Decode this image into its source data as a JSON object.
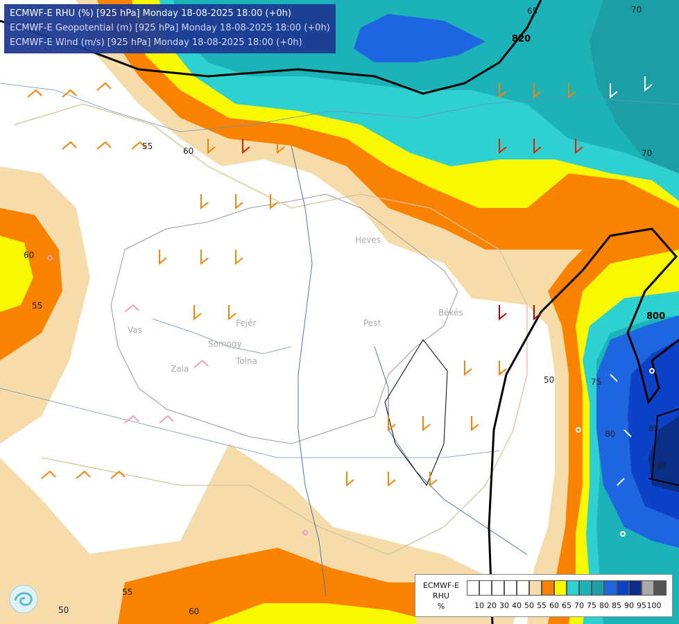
{
  "header": {
    "line1": "ECMWF-E RHU (%) [925 hPa] Monday 18-08-2025 18:00 (+0h)",
    "line2": "ECMWF-E Geopotential (m) [925 hPa] Monday 18-08-2025 18:00 (+0h)",
    "line3": "ECMWF-E Wind (m/s) [925 hPa] Monday 18-08-2025 18:00 (+0h)"
  },
  "colorbar": {
    "label_lines": [
      "ECMWF-E",
      "RHU",
      "%"
    ],
    "ticks": [
      "10",
      "20",
      "30",
      "40",
      "50",
      "55",
      "60",
      "65",
      "70",
      "75",
      "80",
      "85",
      "90",
      "95",
      "100"
    ],
    "colors": [
      "#ffffff",
      "#ffffff",
      "#ffffff",
      "#ffffff",
      "#ffffff",
      "#f6dcab",
      "#f98200",
      "#f8f800",
      "#2ed0d0",
      "#1bb2b8",
      "#1b9ea6",
      "#1e66e0",
      "#0b42c8",
      "#0a2e86",
      "#a9a9a9",
      "#555555"
    ]
  },
  "contour_labels": {
    "rhu": [
      "55",
      "60",
      "60",
      "55",
      "50",
      "55",
      "60",
      "65",
      "70",
      "70",
      "75",
      "80",
      "85",
      "90",
      "50"
    ],
    "geopotential": [
      "820",
      "800"
    ]
  },
  "place_labels": [
    "Heves",
    "Pest",
    "Békés",
    "Vas",
    "Somogy",
    "Fejér",
    "Zala",
    "Tolna"
  ]
}
